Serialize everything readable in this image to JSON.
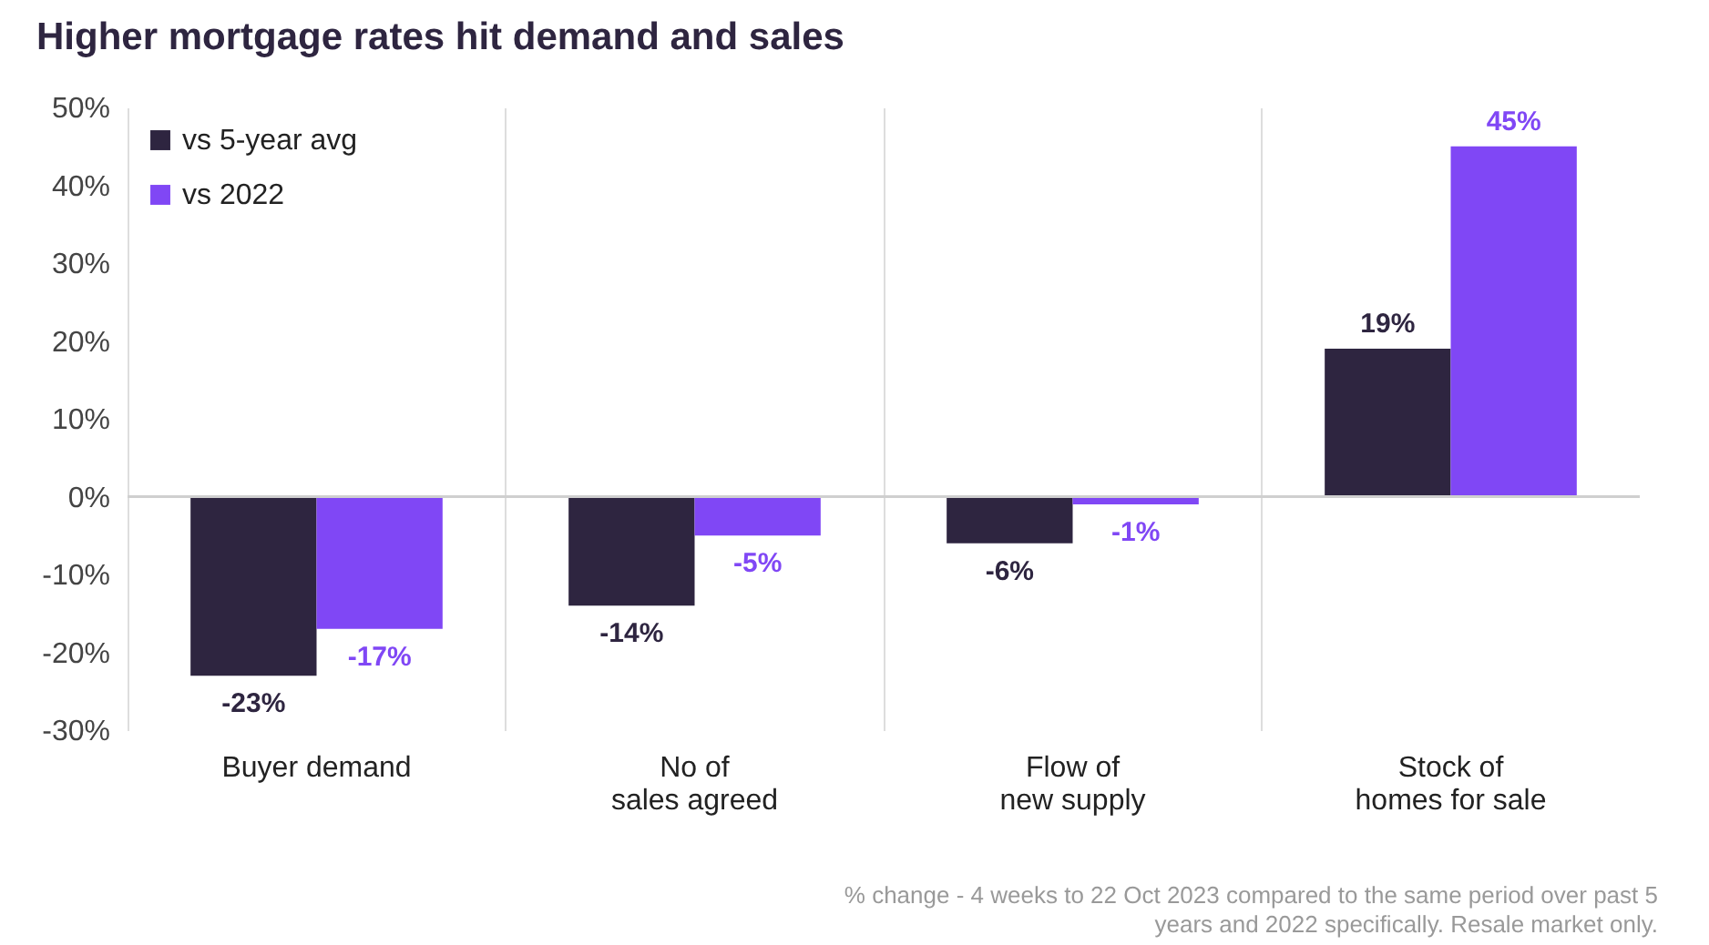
{
  "chart_data": {
    "type": "bar",
    "title": "Higher mortgage rates hit demand and sales",
    "categories": [
      "Buyer demand",
      "No of\nsales agreed",
      "Flow of\nnew supply",
      "Stock of\nhomes for sale"
    ],
    "series": [
      {
        "name": "vs 5-year avg",
        "color": "#2e2540",
        "values": [
          -23,
          -14,
          -6,
          19
        ],
        "value_labels": [
          "-23%",
          "-14%",
          "-6%",
          "19%"
        ]
      },
      {
        "name": "vs 2022",
        "color": "#8047f5",
        "values": [
          -17,
          -5,
          -1,
          45
        ],
        "value_labels": [
          "-17%",
          "-5%",
          "-1%",
          "45%"
        ]
      }
    ],
    "ylim": [
      -30,
      50
    ],
    "yticks": [
      {
        "value": -30,
        "label": "-30%"
      },
      {
        "value": -20,
        "label": "-20%"
      },
      {
        "value": -10,
        "label": "-10%"
      },
      {
        "value": 0,
        "label": "0%"
      },
      {
        "value": 10,
        "label": "10%"
      },
      {
        "value": 20,
        "label": "20%"
      },
      {
        "value": 30,
        "label": "30%"
      },
      {
        "value": 40,
        "label": "40%"
      },
      {
        "value": 50,
        "label": "50%"
      }
    ],
    "ref_lines": [
      {
        "axis": "y",
        "value": 0,
        "color": "#cfcfcf"
      }
    ],
    "grid": "x",
    "legend": "top left",
    "annotations": [
      "% change - 4 weeks to 22 Oct 2023 compared to the same period over past 5 years and 2022 specifically. Resale market only."
    ]
  }
}
